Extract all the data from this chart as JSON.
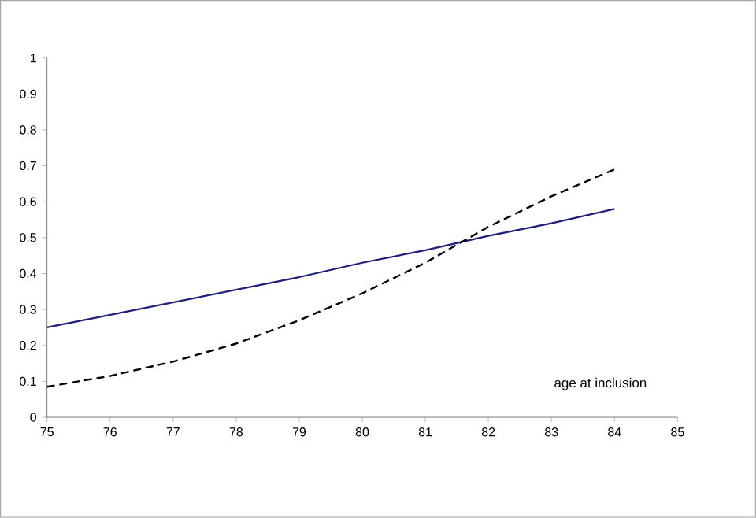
{
  "chart_data": {
    "type": "line",
    "x": [
      75,
      76,
      77,
      78,
      79,
      80,
      81,
      82,
      83,
      84
    ],
    "series": [
      {
        "color": "#1f1f7a",
        "line_style": "solid",
        "values": [
          0.25,
          0.285,
          0.32,
          0.355,
          0.39,
          0.43,
          0.465,
          0.505,
          0.54,
          0.58
        ]
      },
      {
        "color": "#000000",
        "line_style": "dashed",
        "values": [
          0.085,
          0.115,
          0.155,
          0.205,
          0.27,
          0.345,
          0.43,
          0.53,
          0.615,
          0.69
        ]
      }
    ],
    "xlim": [
      75,
      85
    ],
    "ylim": [
      0,
      1
    ],
    "xticks": [
      75,
      76,
      77,
      78,
      79,
      80,
      81,
      82,
      83,
      84,
      85
    ],
    "yticks": [
      0,
      0.1,
      0.2,
      0.3,
      0.4,
      0.5,
      0.6,
      0.7,
      0.8,
      0.9,
      1
    ],
    "annotations": [
      "age at inclusion"
    ],
    "marker": "none"
  }
}
